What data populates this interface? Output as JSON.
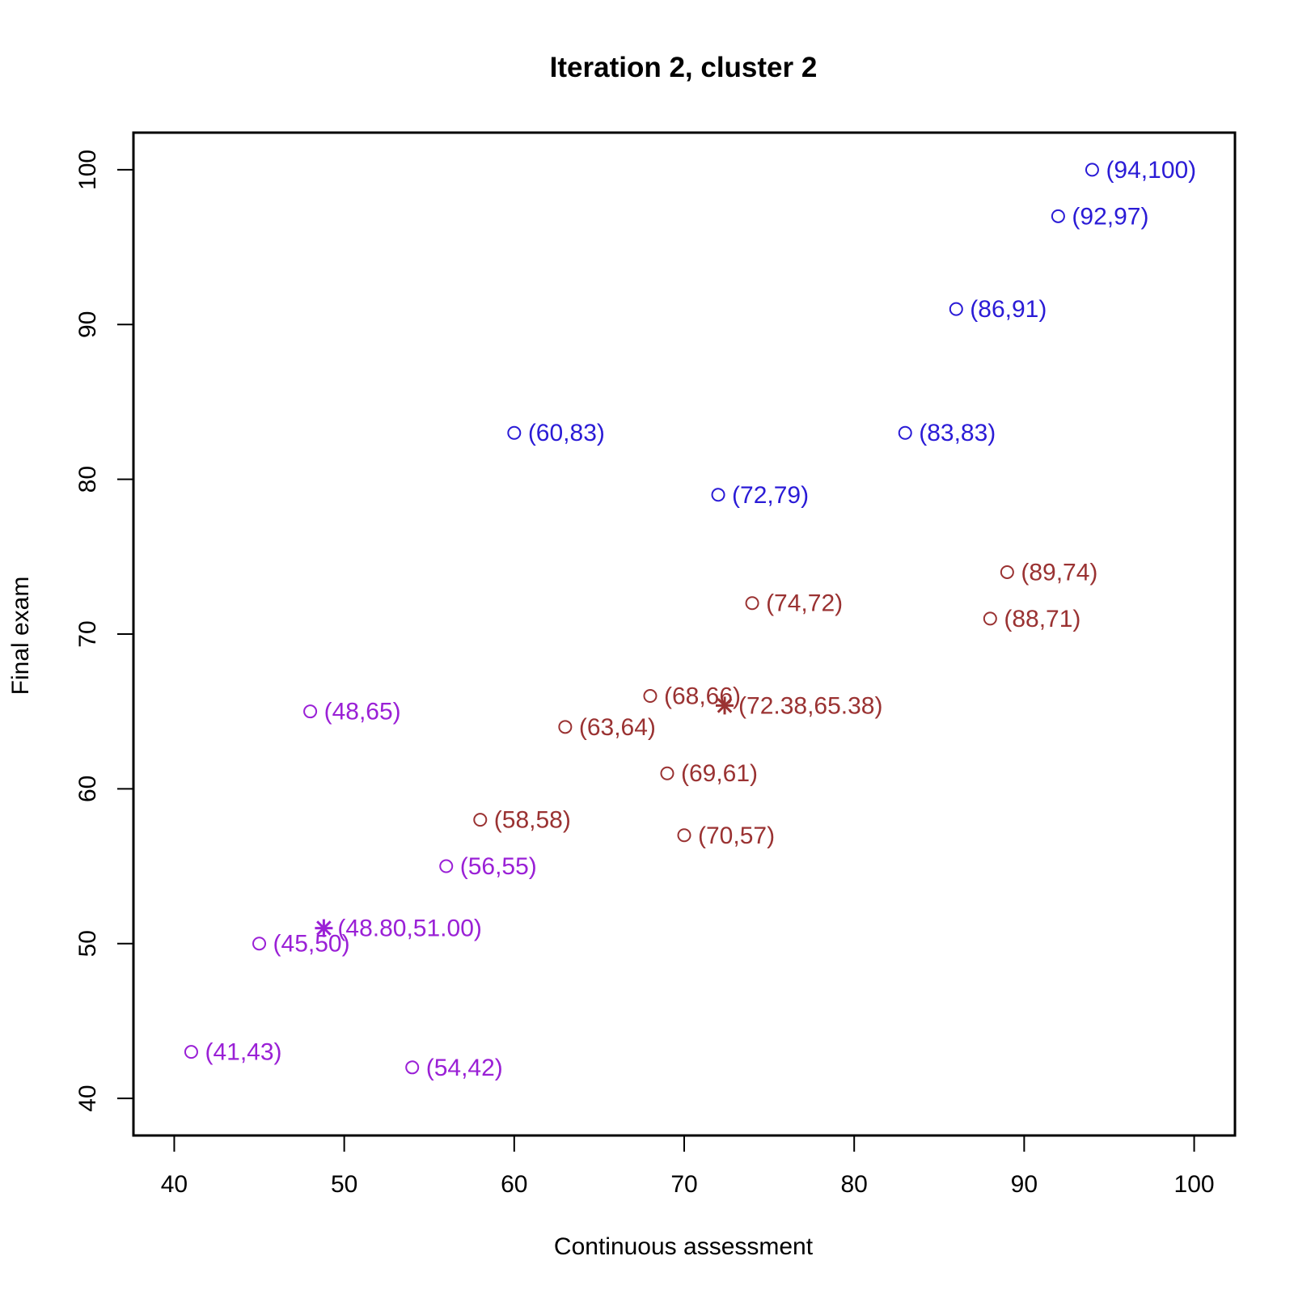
{
  "chart_data": {
    "type": "scatter",
    "title": "Iteration 2, cluster 2",
    "xlabel": "Continuous assessment",
    "ylabel": "Final exam",
    "xlim": [
      37.6,
      102.4
    ],
    "ylim": [
      37.6,
      102.4
    ],
    "x_ticks": [
      40,
      50,
      60,
      70,
      80,
      90,
      100
    ],
    "y_ticks": [
      40,
      50,
      60,
      70,
      80,
      90,
      100
    ],
    "grid": false,
    "legend": "none",
    "series": [
      {
        "color": "#2a1bd6",
        "points": [
          {
            "x": 94,
            "y": 100,
            "label": "(94,100)"
          },
          {
            "x": 92,
            "y": 97,
            "label": "(92,97)"
          },
          {
            "x": 86,
            "y": 91,
            "label": "(86,91)"
          },
          {
            "x": 60,
            "y": 83,
            "label": "(60,83)"
          },
          {
            "x": 83,
            "y": 83,
            "label": "(83,83)"
          },
          {
            "x": 72,
            "y": 79,
            "label": "(72,79)"
          }
        ]
      },
      {
        "color": "#9a3232",
        "points": [
          {
            "x": 89,
            "y": 74,
            "label": "(89,74)"
          },
          {
            "x": 74,
            "y": 72,
            "label": "(74,72)"
          },
          {
            "x": 88,
            "y": 71,
            "label": "(88,71)"
          },
          {
            "x": 68,
            "y": 66,
            "label": "(68,66)"
          },
          {
            "x": 63,
            "y": 64,
            "label": "(63,64)"
          },
          {
            "x": 69,
            "y": 61,
            "label": "(69,61)"
          },
          {
            "x": 58,
            "y": 58,
            "label": "(58,58)"
          },
          {
            "x": 70,
            "y": 57,
            "label": "(70,57)"
          }
        ],
        "centroid": {
          "x": 72.38,
          "y": 65.38,
          "label": "(72.38,65.38)"
        }
      },
      {
        "color": "#9a20d6",
        "points": [
          {
            "x": 48,
            "y": 65,
            "label": "(48,65)"
          },
          {
            "x": 56,
            "y": 55,
            "label": "(56,55)"
          },
          {
            "x": 45,
            "y": 50,
            "label": "(45,50)"
          },
          {
            "x": 41,
            "y": 43,
            "label": "(41,43)"
          },
          {
            "x": 54,
            "y": 42,
            "label": "(54,42)"
          }
        ],
        "centroid": {
          "x": 48.8,
          "y": 51.0,
          "label": "(48.80,51.00)"
        }
      }
    ]
  }
}
